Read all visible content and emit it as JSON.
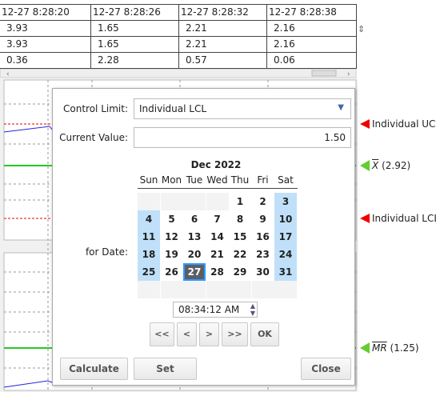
{
  "table": {
    "headers": [
      "12-27 8:28:20",
      "12-27 8:28:26",
      "12-27 8:28:32",
      "12-27 8:28:38"
    ],
    "rows": [
      [
        "3.93",
        "1.65",
        "2.21",
        "2.16"
      ],
      [
        "3.93",
        "1.65",
        "2.21",
        "2.16"
      ],
      [
        "0.36",
        "2.28",
        "0.57",
        "0.06"
      ]
    ]
  },
  "chart_labels": {
    "ucl": "Individual UCL",
    "xbar_symbol": "X",
    "xbar_value": "(2.92)",
    "lcl": "Individual LCL (",
    "mr_symbol": "MR",
    "mr_value": "(1.25)"
  },
  "dialog": {
    "control_limit_label": "Control Limit:",
    "control_limit_value": "Individual LCL",
    "current_value_label": "Current Value:",
    "current_value": "1.50",
    "calendar": {
      "month": "Dec 2022",
      "weekdays": [
        "Sun",
        "Mon",
        "Tue",
        "Wed",
        "Thu",
        "Fri",
        "Sat"
      ],
      "weeks": [
        [
          null,
          null,
          null,
          null,
          1,
          2,
          3
        ],
        [
          4,
          5,
          6,
          7,
          8,
          9,
          10
        ],
        [
          11,
          12,
          13,
          14,
          15,
          16,
          17
        ],
        [
          18,
          19,
          20,
          21,
          22,
          23,
          24
        ],
        [
          25,
          26,
          27,
          28,
          29,
          30,
          31
        ]
      ],
      "selected_day": 27
    },
    "for_date_label": "for Date:",
    "time": "08:34:12 AM",
    "nav_buttons": [
      "<<",
      "<",
      ">",
      ">>",
      "OK"
    ],
    "buttons": {
      "calculate": "Calculate",
      "set": "Set",
      "close": "Close"
    }
  }
}
